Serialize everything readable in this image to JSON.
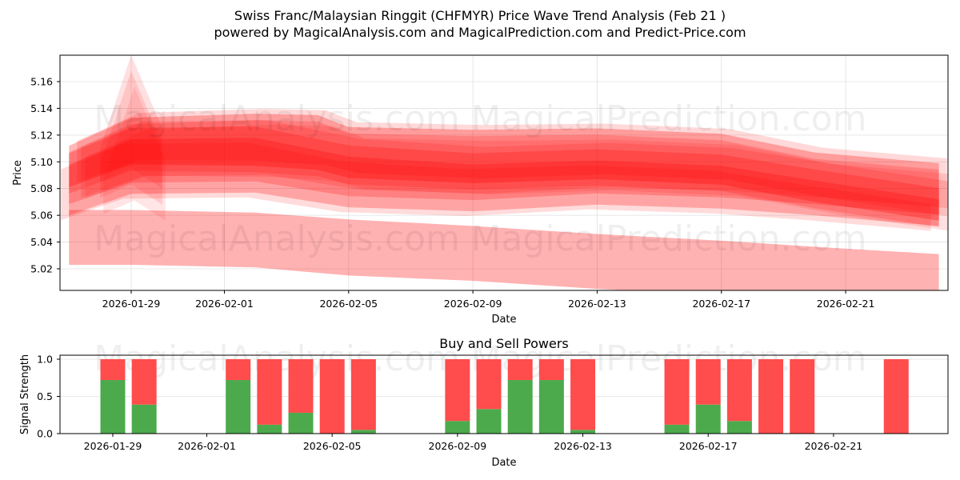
{
  "header": {
    "title": "Swiss Franc/Malaysian Ringgit (CHFMYR) Price Wave Trend Analysis (Feb 21 )",
    "subtitle": "powered by MagicalAnalysis.com and MagicalPrediction.com and Predict-Price.com"
  },
  "watermarks": [
    "MagicalAnalysis.com",
    "MagicalPrediction.com"
  ],
  "colors": {
    "band": "#ff0000",
    "buy": "#4caa4c",
    "sell": "#ff4c4c",
    "grid": "#e0e0e0"
  },
  "chart_data": [
    {
      "type": "area",
      "title": "Swiss Franc/Malaysian Ringgit (CHFMYR) Price Wave Trend Analysis (Feb 21 )",
      "xlabel": "Date",
      "ylabel": "Price",
      "x_ticks": [
        "2026-01-29",
        "2026-02-01",
        "2026-02-05",
        "2026-02-09",
        "2026-02-13",
        "2026-02-17",
        "2026-02-21"
      ],
      "y_ticks": [
        "5.02",
        "5.04",
        "5.06",
        "5.08",
        "5.10",
        "5.12",
        "5.14",
        "5.16"
      ],
      "ylim": [
        5.004,
        5.18
      ],
      "xlim": [
        "2026-01-26",
        "2026-02-24"
      ],
      "grid": true,
      "description": "Multiple overlapping semi-transparent red wave bands showing projected price ranges",
      "bands": [
        {
          "name": "upper-envelope",
          "x": [
            "2026-01-27",
            "2026-01-29",
            "2026-02-02",
            "2026-02-04",
            "2026-02-05",
            "2026-02-09",
            "2026-02-13",
            "2026-02-17",
            "2026-02-20",
            "2026-02-24"
          ],
          "upper": [
            5.112,
            5.133,
            5.136,
            5.135,
            5.126,
            5.124,
            5.125,
            5.121,
            5.107,
            5.099
          ],
          "lower": [
            5.081,
            5.098,
            5.097,
            5.094,
            5.088,
            5.084,
            5.087,
            5.083,
            5.07,
            5.056
          ]
        },
        {
          "name": "core-band",
          "x": [
            "2026-01-27",
            "2026-01-29",
            "2026-02-02",
            "2026-02-05",
            "2026-02-09",
            "2026-02-13",
            "2026-02-17",
            "2026-02-20",
            "2026-02-24"
          ],
          "upper": [
            5.098,
            5.117,
            5.118,
            5.104,
            5.098,
            5.101,
            5.097,
            5.086,
            5.072
          ],
          "lower": [
            5.06,
            5.076,
            5.077,
            5.066,
            5.063,
            5.068,
            5.065,
            5.06,
            5.052
          ]
        },
        {
          "name": "lower-band",
          "x": [
            "2026-01-27",
            "2026-01-29",
            "2026-02-02",
            "2026-02-05",
            "2026-02-09",
            "2026-02-13",
            "2026-02-17",
            "2026-02-21",
            "2026-02-24"
          ],
          "upper": [
            5.064,
            5.064,
            5.062,
            5.057,
            5.052,
            5.046,
            5.041,
            5.035,
            5.031
          ],
          "lower": [
            5.023,
            5.023,
            5.021,
            5.015,
            5.011,
            5.005,
            5.0,
            4.996,
            4.993
          ]
        },
        {
          "name": "spike-wave",
          "x": [
            "2026-01-28",
            "2026-01-29",
            "2026-01-30"
          ],
          "upper": [
            5.11,
            5.18,
            5.125
          ],
          "lower": [
            5.085,
            5.095,
            5.08
          ]
        }
      ]
    },
    {
      "type": "bar",
      "title": "Buy and Sell Powers",
      "xlabel": "Date",
      "ylabel": "Signal Strength",
      "x_ticks": [
        "2026-01-29",
        "2026-02-01",
        "2026-02-05",
        "2026-02-09",
        "2026-02-13",
        "2026-02-17",
        "2026-02-21"
      ],
      "y_ticks": [
        "0.0",
        "0.5",
        "1.0"
      ],
      "ylim": [
        0,
        1.05
      ],
      "stacked": true,
      "categories": [
        "2026-01-29",
        "2026-01-30",
        "2026-02-02",
        "2026-02-03",
        "2026-02-04",
        "2026-02-05",
        "2026-02-06",
        "2026-02-09",
        "2026-02-10",
        "2026-02-11",
        "2026-02-12",
        "2026-02-13",
        "2026-02-16",
        "2026-02-17",
        "2026-02-18",
        "2026-02-19",
        "2026-02-20",
        "2026-02-23"
      ],
      "series": [
        {
          "name": "Buy",
          "color": "#4caa4c",
          "values": [
            0.72,
            0.39,
            0.72,
            0.12,
            0.28,
            0.0,
            0.05,
            0.17,
            0.33,
            0.72,
            0.72,
            0.05,
            0.12,
            0.39,
            0.17,
            0.0,
            0.0,
            0.0
          ]
        },
        {
          "name": "Sell",
          "color": "#ff4c4c",
          "values": [
            0.28,
            0.61,
            0.28,
            0.88,
            0.72,
            1.0,
            0.95,
            0.83,
            0.67,
            0.28,
            0.28,
            0.95,
            0.88,
            0.61,
            0.83,
            1.0,
            1.0,
            1.0
          ]
        }
      ]
    }
  ]
}
